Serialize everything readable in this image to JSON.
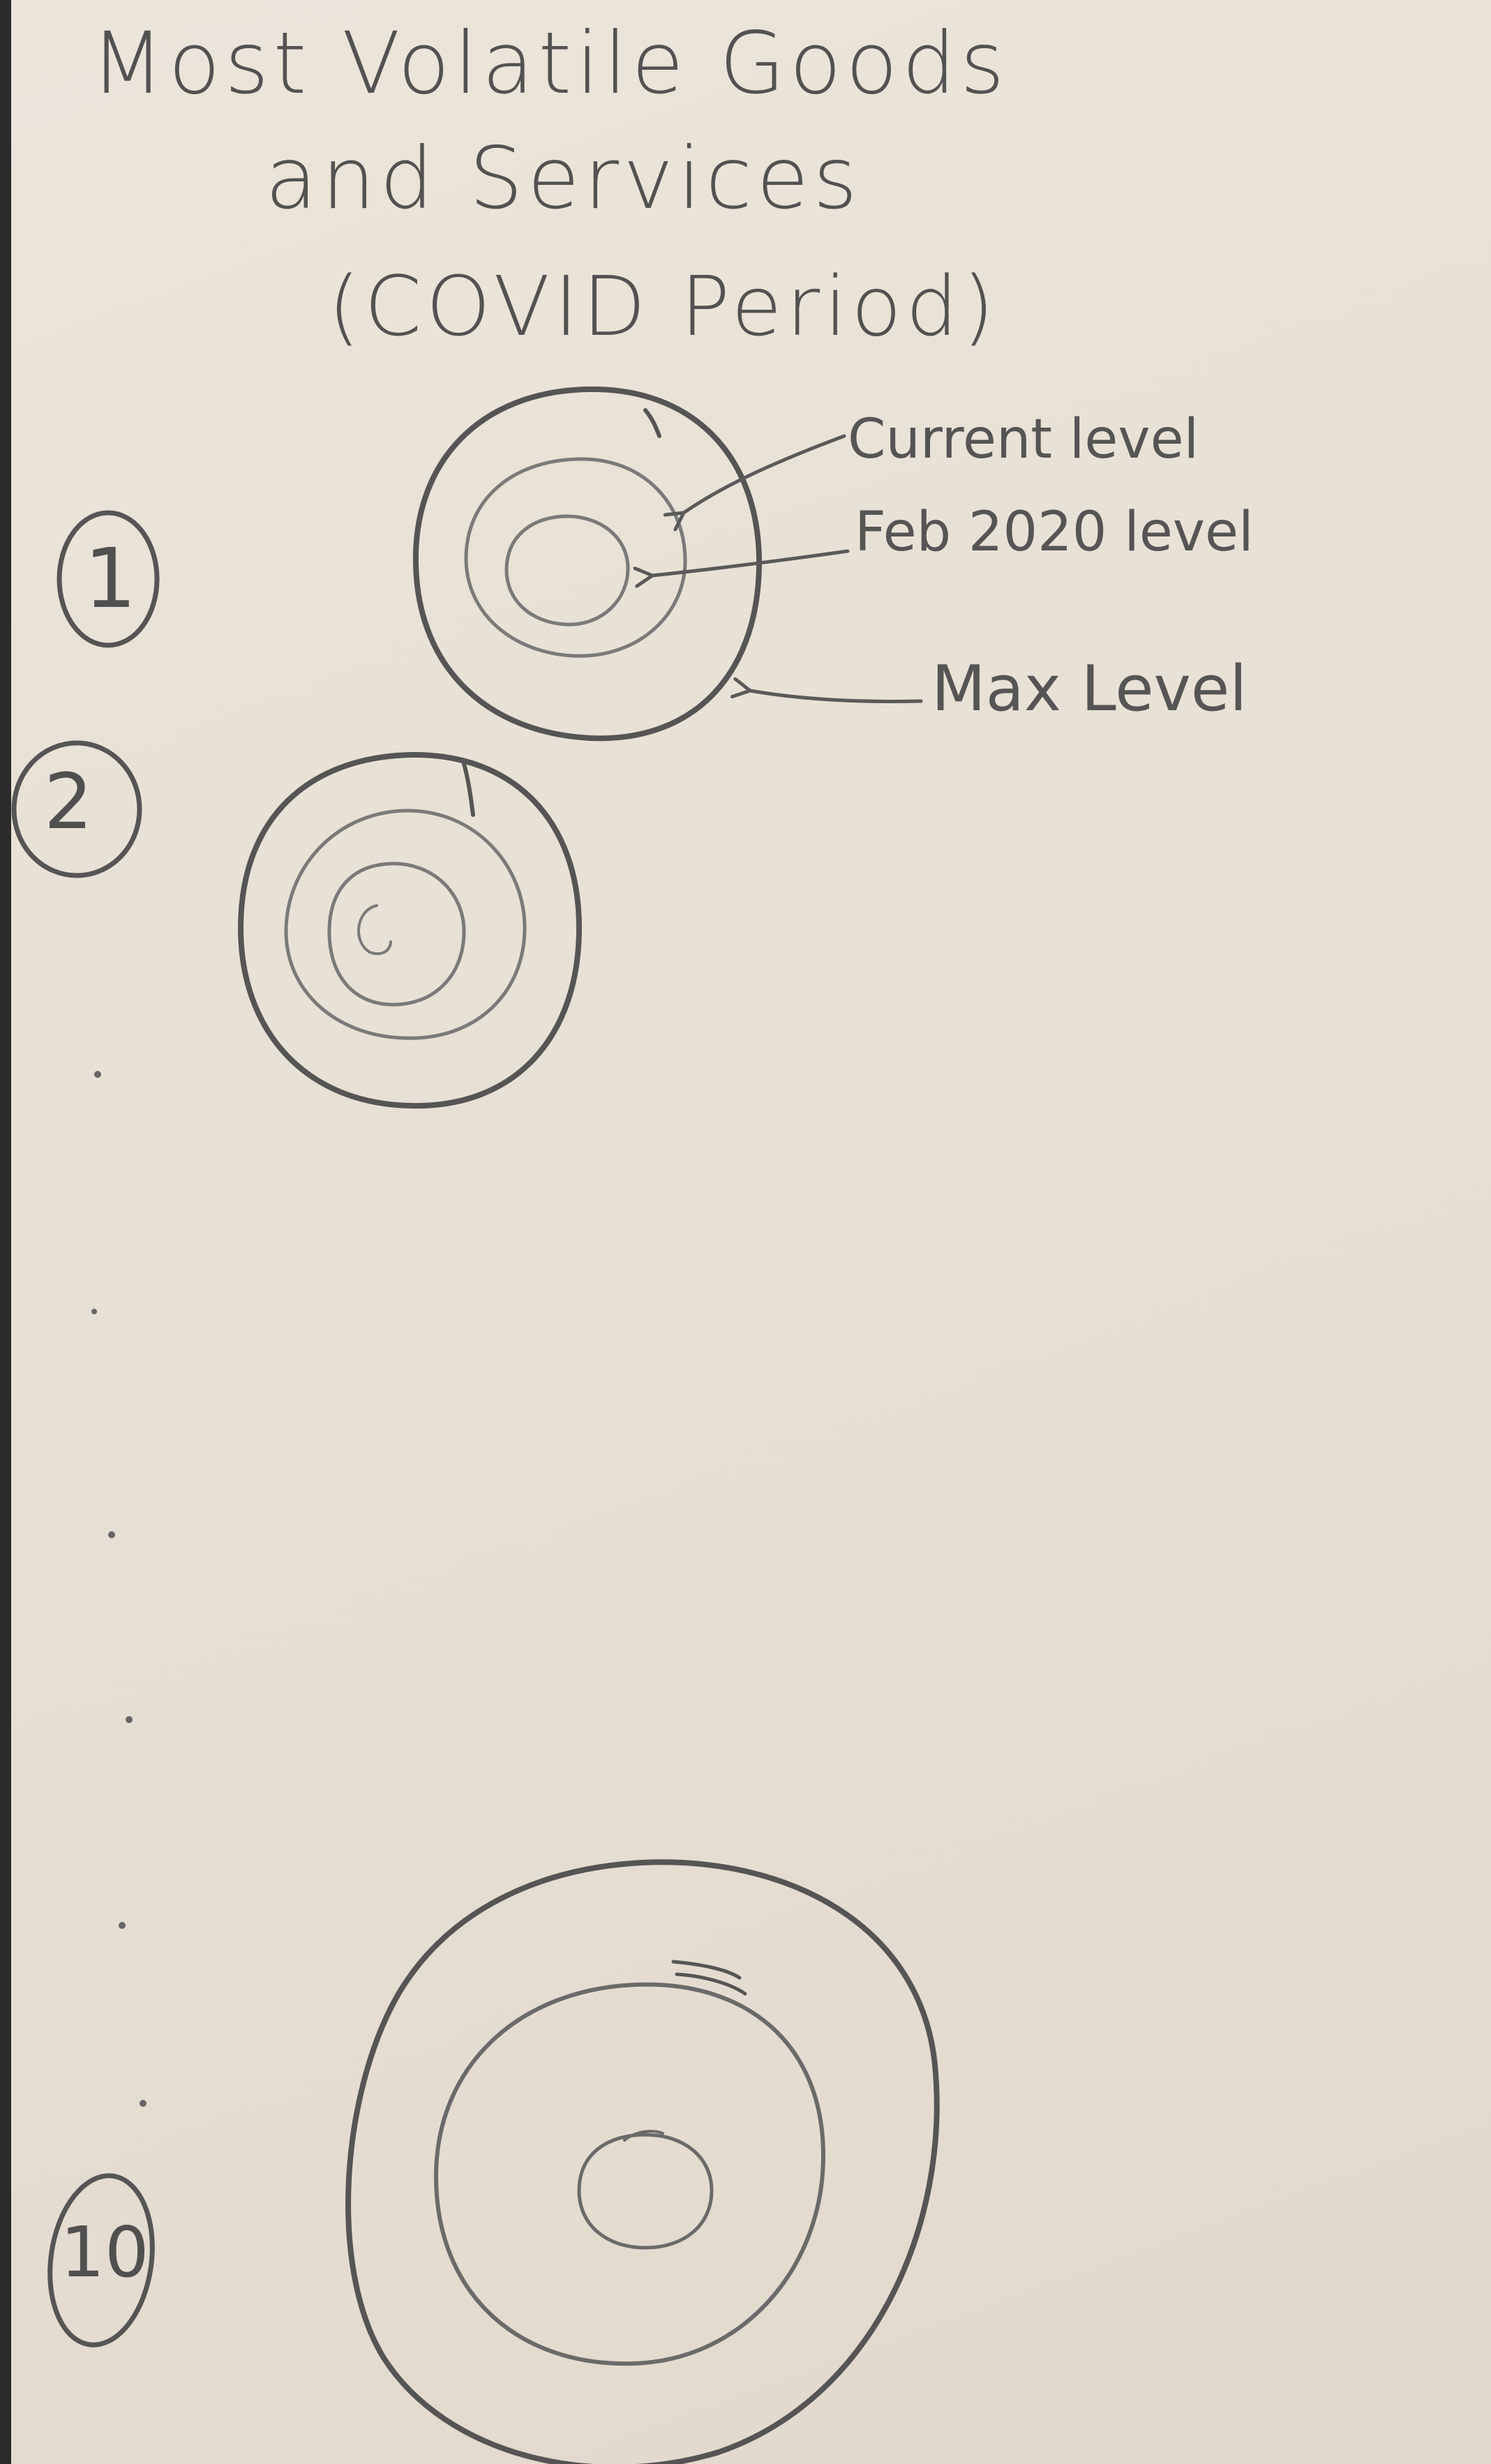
{
  "title": {
    "line1": "Most Volatile Goods",
    "line2": "and Services",
    "line3": "(COVID Period)"
  },
  "legend": {
    "current_level": "Current level",
    "feb_2020_level": "Feb 2020 level",
    "max_level": "Max Level"
  },
  "ranks": {
    "first": "1",
    "second": "2",
    "tenth": "10"
  },
  "colors": {
    "paper": "#e8e1d6",
    "pencil": "#555555",
    "pencil_light": "#7a7a7a"
  }
}
